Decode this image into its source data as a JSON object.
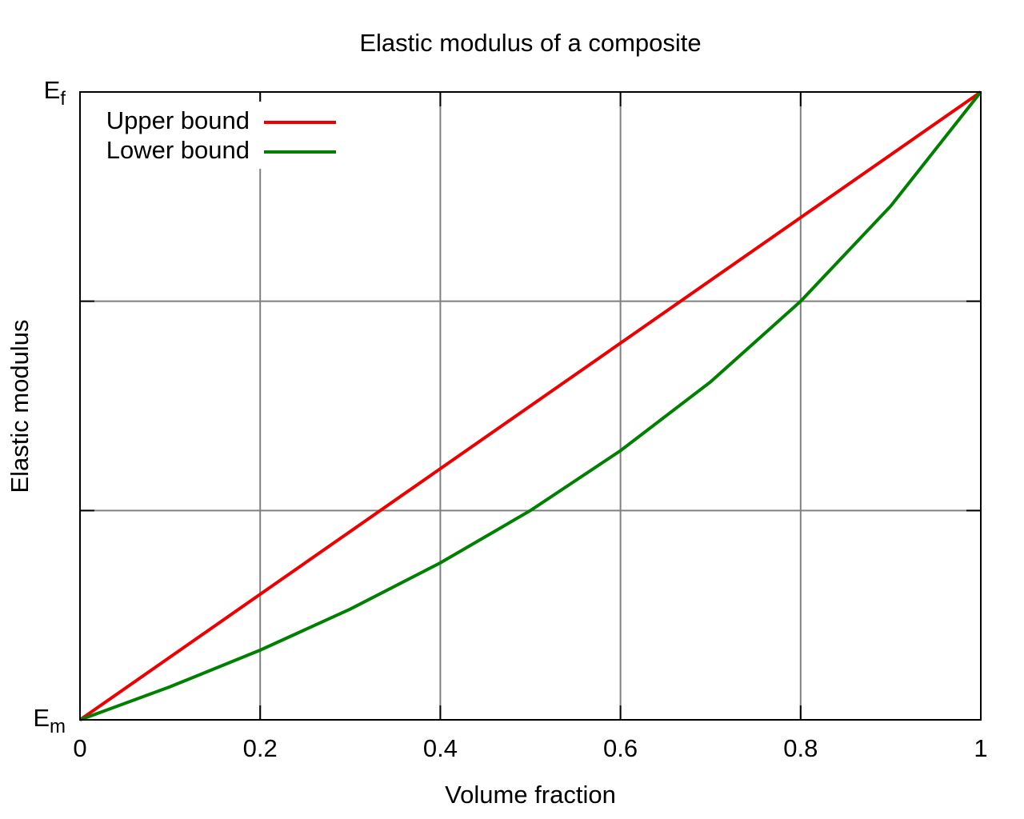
{
  "chart_data": {
    "type": "line",
    "title": "Elastic modulus of a composite",
    "x_label": "Volume fraction",
    "y_label": "Elastic modulus",
    "x": [
      0,
      0.1,
      0.2,
      0.3,
      0.4,
      0.5,
      0.6,
      0.7,
      0.8,
      0.9,
      1
    ],
    "series": [
      {
        "name": "Upper bound",
        "color": "#ee0000",
        "values": [
          3,
          3.3,
          3.6,
          3.9,
          4.2,
          4.5,
          4.8,
          5.1,
          5.4,
          5.7,
          6
        ]
      },
      {
        "name": "Lower bound",
        "color": "#008000",
        "values": [
          3,
          3.158,
          3.333,
          3.529,
          3.75,
          4,
          4.286,
          4.615,
          5,
          5.455,
          6
        ]
      }
    ],
    "xlim": [
      0,
      1
    ],
    "xticks": [
      0,
      0.2,
      0.4,
      0.6,
      0.8,
      1
    ],
    "ylim": [
      3,
      6
    ],
    "yticks": [
      {
        "value": 3,
        "label": "Em"
      },
      {
        "value": 4,
        "label": null
      },
      {
        "value": 5,
        "label": null
      },
      {
        "value": 6,
        "label": "Ef"
      }
    ],
    "grid": true,
    "legend": "top-left"
  }
}
